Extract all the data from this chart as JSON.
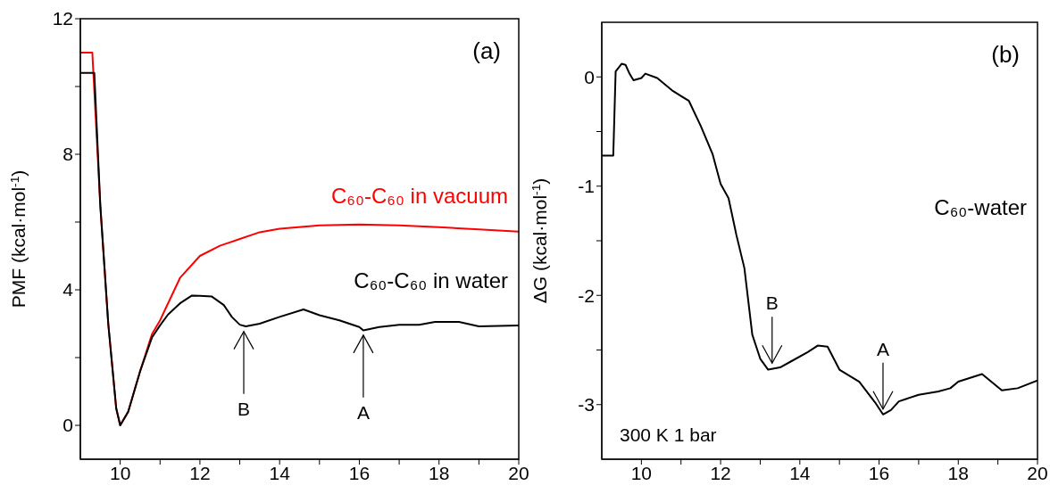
{
  "chart_data": [
    {
      "type": "line",
      "ylabel": "PMF (kcal·mol$^{-1}$)",
      "xlim": [
        9,
        20
      ],
      "ylim": [
        -1,
        12
      ],
      "xticks": [
        10,
        {
          "value": 11,
          "label": null
        },
        12,
        {
          "value": 13,
          "label": null
        },
        14,
        {
          "value": 15,
          "label": null
        },
        16,
        {
          "value": 17,
          "label": null
        },
        18,
        {
          "value": 19,
          "label": null
        },
        20
      ],
      "yticks": [
        0,
        {
          "value": 2,
          "label": null
        },
        4,
        {
          "value": 6,
          "label": null
        },
        8,
        {
          "value": 10,
          "label": null
        },
        12
      ],
      "series": [
        {
          "name": "C₆₀-C₆₀ in vacuum",
          "color": "#ff0000",
          "x": [
            9,
            9.3,
            9.5,
            9.7,
            9.9,
            10,
            10.2,
            10.5,
            10.8,
            11,
            11.5,
            12,
            12.5,
            13,
            13.5,
            14,
            15,
            16,
            17,
            18,
            19,
            20
          ],
          "values": [
            11.0,
            11.0,
            6.5,
            3.0,
            0.5,
            0,
            0.4,
            1.6,
            2.7,
            3.1,
            4.35,
            5.0,
            5.3,
            5.5,
            5.7,
            5.8,
            5.9,
            5.93,
            5.9,
            5.85,
            5.78,
            5.72
          ]
        },
        {
          "name": "C₆₀-C₆₀ in water",
          "color": "#000000",
          "x": [
            9,
            9.3,
            9.35,
            9.5,
            9.7,
            9.9,
            10,
            10.2,
            10.5,
            10.8,
            11,
            11.2,
            11.5,
            11.8,
            12,
            12.3,
            12.6,
            12.8,
            13,
            13.15,
            13.5,
            14,
            14.6,
            15,
            15.5,
            16,
            16.1,
            16.5,
            17,
            17.5,
            17.9,
            18.5,
            19,
            20
          ],
          "values": [
            10.4,
            10.4,
            10.4,
            6.5,
            3.0,
            0.5,
            0,
            0.4,
            1.6,
            2.6,
            2.95,
            3.27,
            3.6,
            3.83,
            3.82,
            3.8,
            3.55,
            3.2,
            2.97,
            2.92,
            3.0,
            3.2,
            3.42,
            3.25,
            3.1,
            2.9,
            2.8,
            2.9,
            2.97,
            2.97,
            3.05,
            3.05,
            2.92,
            2.95
          ]
        }
      ],
      "annotations": [
        "(a)",
        {
          "text": "B",
          "x": 13.1,
          "y": 2.93
        },
        {
          "text": "A",
          "x": 16.1,
          "y": 2.82
        }
      ]
    },
    {
      "type": "line",
      "ylabel": "ΔG (kcal·mol$^{-1}$)",
      "xlim": [
        9,
        20
      ],
      "ylim": [
        -3.5,
        0.5
      ],
      "xticks": [
        10,
        {
          "value": 11,
          "label": null
        },
        12,
        {
          "value": 13,
          "label": null
        },
        14,
        {
          "value": 15,
          "label": null
        },
        16,
        {
          "value": 17,
          "label": null
        },
        18,
        {
          "value": 19,
          "label": null
        },
        20
      ],
      "yticks": [
        -3,
        {
          "value": -2.5,
          "label": null
        },
        -2,
        {
          "value": -1.5,
          "label": null
        },
        -1,
        {
          "value": -0.5,
          "label": null
        },
        0
      ],
      "series": [
        {
          "name": "C₆₀-water",
          "color": "#000000",
          "x": [
            9,
            9.29,
            9.35,
            9.5,
            9.6,
            9.7,
            9.8,
            10,
            10.1,
            10.4,
            10.8,
            11.2,
            11.5,
            11.8,
            12,
            12.2,
            12.4,
            12.6,
            12.8,
            13,
            13.2,
            13.5,
            13.8,
            14.2,
            14.45,
            14.7,
            15,
            15.5,
            15.9,
            16.1,
            16.3,
            16.5,
            17,
            17.5,
            17.8,
            18,
            18.6,
            19.1,
            19.5,
            20
          ],
          "values": [
            -0.72,
            -0.72,
            0.05,
            0.12,
            0.11,
            0.03,
            -0.03,
            -0.01,
            0.03,
            -0.01,
            -0.13,
            -0.22,
            -0.45,
            -0.71,
            -0.98,
            -1.11,
            -1.45,
            -1.75,
            -2.36,
            -2.58,
            -2.68,
            -2.66,
            -2.6,
            -2.52,
            -2.46,
            -2.47,
            -2.68,
            -2.79,
            -2.98,
            -3.09,
            -3.05,
            -2.97,
            -2.91,
            -2.88,
            -2.85,
            -2.79,
            -2.72,
            -2.87,
            -2.85,
            -2.78
          ]
        }
      ],
      "annotations": [
        "(b)",
        "300 K 1 bar",
        {
          "text": "B",
          "x": 13.3,
          "y": -2.67
        },
        {
          "text": "A",
          "x": 16.1,
          "y": -3.09
        }
      ]
    }
  ]
}
